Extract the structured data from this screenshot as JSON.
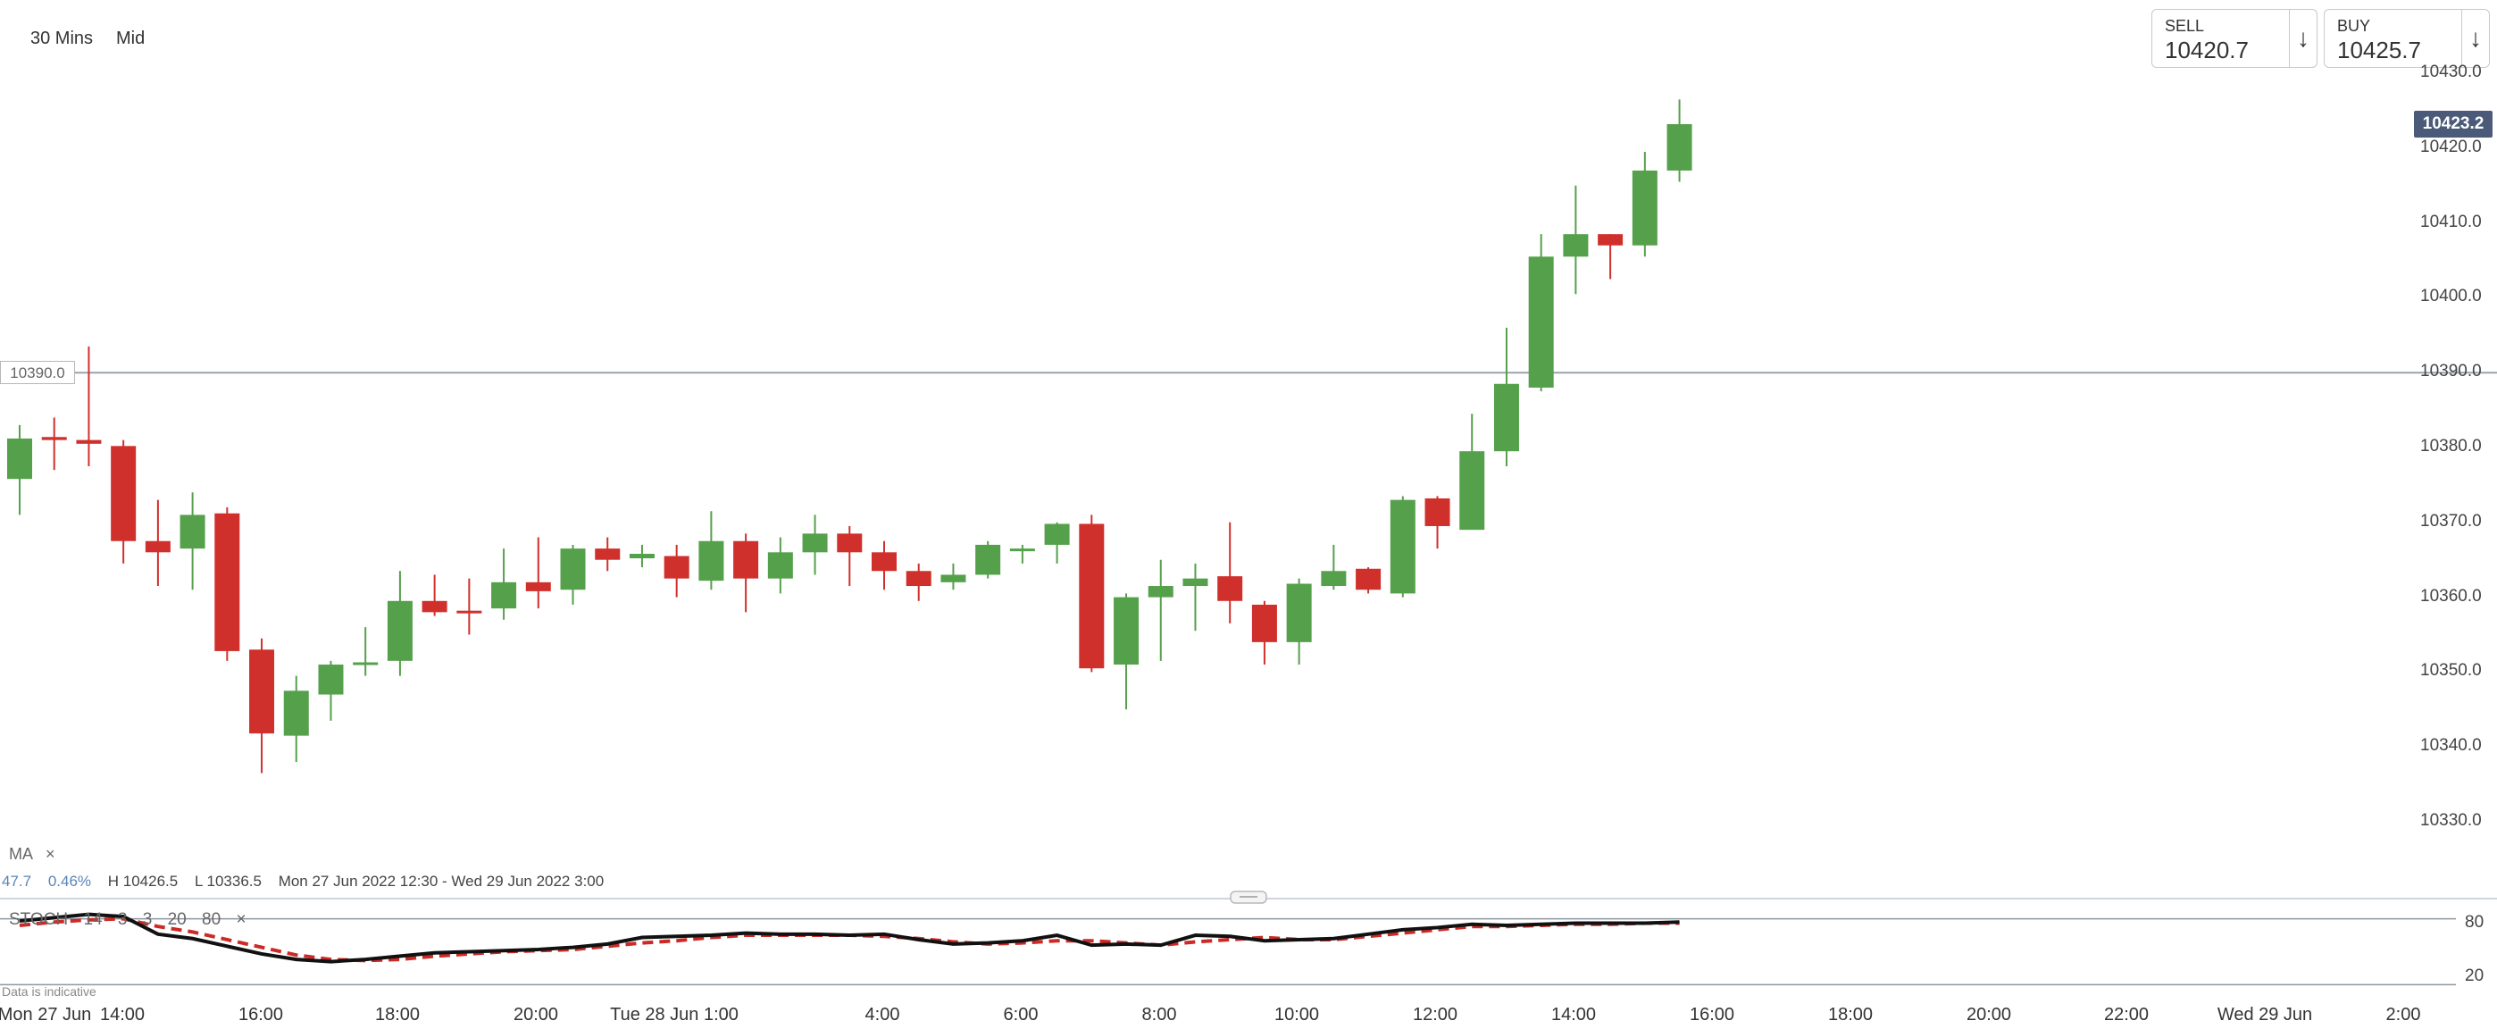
{
  "toolbar": {
    "timeframe": "30 Mins",
    "price_type": "Mid"
  },
  "trade": {
    "sell_label": "SELL",
    "sell_price": "10420.7",
    "buy_label": "BUY",
    "buy_price": "10425.7",
    "arrow": "↓"
  },
  "price_axis": {
    "ticks": [
      "10430.0",
      "10420.0",
      "10410.0",
      "10400.0",
      "10390.0",
      "10380.0",
      "10370.0",
      "10360.0",
      "10350.0",
      "10340.0",
      "10330.0"
    ],
    "current_price": "10423.2",
    "horizontal_line_label": "10390.0"
  },
  "overlay": {
    "ma_label": "MA",
    "close_symbol": "×",
    "change": "47.7",
    "change_pct": "0.46%",
    "high": "H 10426.5",
    "low": "L 10336.5",
    "range": "Mon 27 Jun 2022 12:30 - Wed 29 Jun 2022 3:00"
  },
  "stoch": {
    "label": "STOCH",
    "params": [
      "14",
      "3",
      "3",
      "20",
      "80"
    ],
    "level_high": "80",
    "level_low": "20"
  },
  "time_axis": {
    "ticks": [
      "Mon 27 Jun",
      "14:00",
      "16:00",
      "18:00",
      "20:00",
      "Tue 28 Jun 1:00",
      "4:00",
      "6:00",
      "8:00",
      "10:00",
      "12:00",
      "14:00",
      "16:00",
      "18:00",
      "20:00",
      "22:00",
      "Wed 29 Jun",
      "2:00"
    ]
  },
  "disclaimer": "Data is indicative",
  "colors": {
    "up": "#55a04b",
    "down": "#d0302c",
    "current_price_bg": "#4a5a78",
    "stoch_k": "#111111",
    "stoch_d": "#cc2a26",
    "grid_line": "#9aa3ad"
  },
  "chart_data": {
    "type": "candlestick",
    "interval": "30 Mins",
    "ylim": [
      10325,
      10432
    ],
    "horizontal_line": 10390.0,
    "current_price": 10423.2,
    "candles": [
      {
        "o": 10375.8,
        "h": 10383.0,
        "l": 10371.0,
        "c": 10381.2
      },
      {
        "o": 10381.4,
        "h": 10384.0,
        "l": 10377.0,
        "c": 10381.0
      },
      {
        "o": 10381.0,
        "h": 10393.5,
        "l": 10377.5,
        "c": 10380.5
      },
      {
        "o": 10380.2,
        "h": 10381.0,
        "l": 10364.5,
        "c": 10367.5
      },
      {
        "o": 10367.5,
        "h": 10373.0,
        "l": 10361.5,
        "c": 10366.0
      },
      {
        "o": 10366.5,
        "h": 10374.0,
        "l": 10361.0,
        "c": 10371.0
      },
      {
        "o": 10371.2,
        "h": 10372.0,
        "l": 10351.5,
        "c": 10352.8
      },
      {
        "o": 10353.0,
        "h": 10354.5,
        "l": 10336.5,
        "c": 10341.8
      },
      {
        "o": 10341.5,
        "h": 10349.5,
        "l": 10338.0,
        "c": 10347.5
      },
      {
        "o": 10347.0,
        "h": 10351.5,
        "l": 10343.5,
        "c": 10351.0
      },
      {
        "o": 10351.0,
        "h": 10356.0,
        "l": 10349.5,
        "c": 10351.3
      },
      {
        "o": 10351.5,
        "h": 10363.5,
        "l": 10349.5,
        "c": 10359.5
      },
      {
        "o": 10359.5,
        "h": 10363.0,
        "l": 10357.5,
        "c": 10358.0
      },
      {
        "o": 10358.2,
        "h": 10362.5,
        "l": 10355.0,
        "c": 10358.0
      },
      {
        "o": 10358.5,
        "h": 10366.5,
        "l": 10357.0,
        "c": 10362.0
      },
      {
        "o": 10362.0,
        "h": 10368.0,
        "l": 10358.5,
        "c": 10360.8
      },
      {
        "o": 10361.0,
        "h": 10367.0,
        "l": 10359.0,
        "c": 10366.5
      },
      {
        "o": 10366.5,
        "h": 10368.0,
        "l": 10363.5,
        "c": 10365.0
      },
      {
        "o": 10365.2,
        "h": 10367.0,
        "l": 10364.0,
        "c": 10365.8
      },
      {
        "o": 10365.5,
        "h": 10367.0,
        "l": 10360.0,
        "c": 10362.5
      },
      {
        "o": 10362.2,
        "h": 10371.5,
        "l": 10361.0,
        "c": 10367.5
      },
      {
        "o": 10367.5,
        "h": 10368.5,
        "l": 10358.0,
        "c": 10362.5
      },
      {
        "o": 10362.5,
        "h": 10368.0,
        "l": 10360.5,
        "c": 10366.0
      },
      {
        "o": 10366.0,
        "h": 10371.0,
        "l": 10363.0,
        "c": 10368.5
      },
      {
        "o": 10368.5,
        "h": 10369.5,
        "l": 10361.5,
        "c": 10366.0
      },
      {
        "o": 10366.0,
        "h": 10367.5,
        "l": 10361.0,
        "c": 10363.5
      },
      {
        "o": 10363.5,
        "h": 10364.5,
        "l": 10359.5,
        "c": 10361.5
      },
      {
        "o": 10362.0,
        "h": 10364.5,
        "l": 10361.0,
        "c": 10363.0
      },
      {
        "o": 10363.0,
        "h": 10367.5,
        "l": 10362.5,
        "c": 10367.0
      },
      {
        "o": 10366.5,
        "h": 10367.0,
        "l": 10364.5,
        "c": 10366.5
      },
      {
        "o": 10367.0,
        "h": 10370.0,
        "l": 10364.5,
        "c": 10369.8
      },
      {
        "o": 10369.8,
        "h": 10371.0,
        "l": 10350.0,
        "c": 10350.5
      },
      {
        "o": 10351.0,
        "h": 10360.5,
        "l": 10345.0,
        "c": 10360.0
      },
      {
        "o": 10360.0,
        "h": 10365.0,
        "l": 10351.5,
        "c": 10361.5
      },
      {
        "o": 10361.5,
        "h": 10364.5,
        "l": 10355.5,
        "c": 10362.5
      },
      {
        "o": 10362.8,
        "h": 10370.0,
        "l": 10356.5,
        "c": 10359.5
      },
      {
        "o": 10359.0,
        "h": 10359.5,
        "l": 10351.0,
        "c": 10354.0
      },
      {
        "o": 10354.0,
        "h": 10362.5,
        "l": 10351.0,
        "c": 10361.8
      },
      {
        "o": 10361.5,
        "h": 10367.0,
        "l": 10361.0,
        "c": 10363.5
      },
      {
        "o": 10363.8,
        "h": 10364.0,
        "l": 10360.5,
        "c": 10361.0
      },
      {
        "o": 10360.5,
        "h": 10373.5,
        "l": 10360.0,
        "c": 10373.0
      },
      {
        "o": 10373.2,
        "h": 10373.5,
        "l": 10366.5,
        "c": 10369.5
      },
      {
        "o": 10369.0,
        "h": 10384.5,
        "l": 10369.0,
        "c": 10379.5
      },
      {
        "o": 10379.5,
        "h": 10396.0,
        "l": 10377.5,
        "c": 10388.5
      },
      {
        "o": 10388.0,
        "h": 10408.5,
        "l": 10387.5,
        "c": 10405.5
      },
      {
        "o": 10405.5,
        "h": 10415.0,
        "l": 10400.5,
        "c": 10408.5
      },
      {
        "o": 10408.5,
        "h": 10408.5,
        "l": 10402.5,
        "c": 10407.0
      },
      {
        "o": 10407.0,
        "h": 10419.5,
        "l": 10405.5,
        "c": 10417.0
      },
      {
        "o": 10417.0,
        "h": 10426.5,
        "l": 10415.5,
        "c": 10423.2
      }
    ],
    "stochastic": {
      "params": [
        14,
        3,
        3,
        20,
        80
      ],
      "levels": [
        20,
        80
      ],
      "ylim": [
        0,
        100
      ],
      "k": [
        78,
        81,
        84,
        82,
        66,
        62,
        55,
        48,
        43,
        41,
        43,
        46,
        49,
        50,
        51,
        52,
        54,
        57,
        63,
        64,
        65,
        67,
        66,
        66,
        65,
        66,
        61,
        57,
        58,
        60,
        65,
        56,
        57,
        56,
        65,
        64,
        60,
        61,
        62,
        66,
        70,
        72,
        75,
        74,
        75,
        76,
        76,
        76,
        77
      ],
      "d": [
        74,
        77,
        79,
        80,
        73,
        68,
        61,
        54,
        47,
        43,
        42,
        43,
        46,
        48,
        50,
        51,
        52,
        55,
        58,
        60,
        63,
        65,
        65,
        65,
        65,
        64,
        62,
        59,
        57,
        58,
        60,
        60,
        58,
        56,
        59,
        61,
        63,
        61,
        61,
        64,
        67,
        70,
        73,
        73,
        74,
        75,
        75,
        76,
        76
      ]
    }
  }
}
